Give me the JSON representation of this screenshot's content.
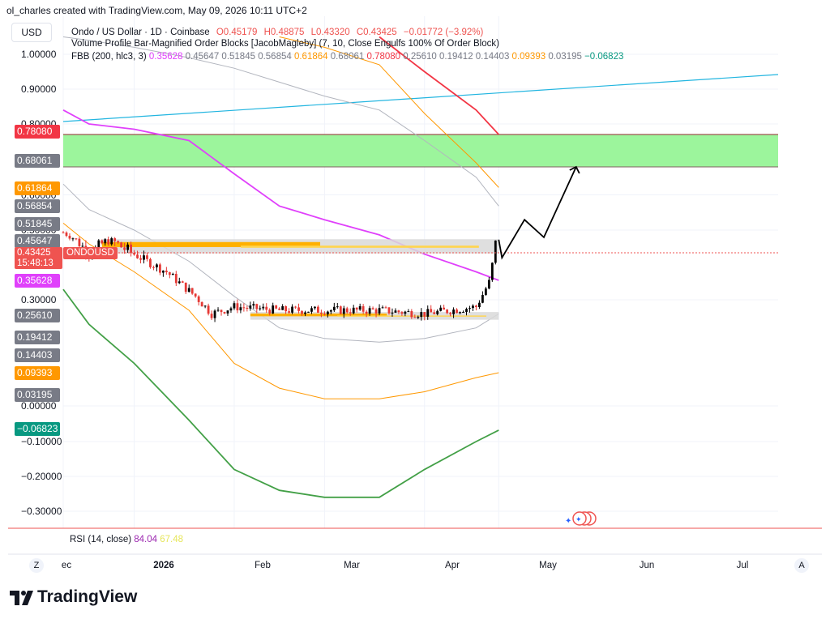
{
  "header": {
    "brand_line": "ol_charles created with TradingView.com, May 09, 2026 10:11 UTC+2",
    "currency": "USD"
  },
  "legend": {
    "symbol_line": "Ondo / US Dollar · 1D · Coinbase",
    "open": "O0.45179",
    "high": "H0.48875",
    "low": "L0.43320",
    "close": "C0.43425",
    "change": "−0.01772 (−3.92%)",
    "volume_profile_line": "Volume Profile Bar-Magnified Order Blocks [JacobMagleby] (7, 10, Close Engulfs 100% Of Order Block)",
    "fbb_name": "FBB (200, hlc3, 3)",
    "fbb_values": [
      {
        "text": "0.35628",
        "color": "#e040fb"
      },
      {
        "text": "0.45647",
        "color": "#787b86"
      },
      {
        "text": "0.51845",
        "color": "#787b86"
      },
      {
        "text": "0.56854",
        "color": "#787b86"
      },
      {
        "text": "0.61864",
        "color": "#ff9800"
      },
      {
        "text": "0.68061",
        "color": "#787b86"
      },
      {
        "text": "0.78080",
        "color": "#f23645"
      },
      {
        "text": "0.25610",
        "color": "#787b86"
      },
      {
        "text": "0.19412",
        "color": "#787b86"
      },
      {
        "text": "0.14403",
        "color": "#787b86"
      },
      {
        "text": "0.09393",
        "color": "#ff9800"
      },
      {
        "text": "0.03195",
        "color": "#787b86"
      },
      {
        "text": "−0.06823",
        "color": "#089981"
      }
    ]
  },
  "y_axis_labels": [
    "1.00000",
    "0.90000",
    "0.80000",
    "0.70000",
    "0.60000",
    "0.50000",
    "0.30000",
    "0.00000",
    "−0.10000",
    "−0.20000",
    "−0.30000"
  ],
  "y_badges": [
    {
      "text": "0.78080",
      "color": "#f23645"
    },
    {
      "text": "0.68061",
      "color": "#787b86"
    },
    {
      "text": "0.61864",
      "color": "#ff9800"
    },
    {
      "text": "0.56854",
      "color": "#787b86"
    },
    {
      "text": "0.51845",
      "color": "#787b86"
    },
    {
      "text": "0.45647",
      "color": "#787b86"
    },
    {
      "text": "0.35628",
      "color": "#e040fb"
    },
    {
      "text": "0.25610",
      "color": "#787b86"
    },
    {
      "text": "0.19412",
      "color": "#787b86"
    },
    {
      "text": "0.14403",
      "color": "#787b86"
    },
    {
      "text": "0.09393",
      "color": "#ff9800"
    },
    {
      "text": "0.03195",
      "color": "#787b86"
    },
    {
      "text": "−0.06823",
      "color": "#089981"
    }
  ],
  "price_badge": {
    "symbol": "ONDOUSD",
    "price": "0.43425",
    "countdown": "15:48:13"
  },
  "rsi": {
    "name": "RSI (14, close)",
    "value": "84.04",
    "ma": "67.48",
    "value_color": "#9c27b0",
    "ma_color": "#e6e65a"
  },
  "x_axis_labels": [
    "ec",
    "2026",
    "Feb",
    "Mar",
    "Apr",
    "May",
    "Jun",
    "Jul"
  ],
  "corner_buttons": {
    "left": "Z",
    "right": "A"
  },
  "logo": {
    "text": "TradingView"
  },
  "colors": {
    "up": "#000000",
    "down": "#e53935",
    "basis": "#e040fb",
    "zone": "#9cf59c",
    "trend": "#22b5e0",
    "fib_gray": "#b2b5be",
    "fib_orange": "#ff9800",
    "fib_red": "#f23645",
    "fib_green": "#43a047",
    "order_block": "#ffb000",
    "projection": "#000000"
  },
  "chart_data": {
    "type": "line",
    "symbol": "ONDOUSD",
    "ylim": [
      -0.3,
      1.0
    ],
    "x": [
      "2025-12-24",
      "2026-01-01",
      "2026-01-15",
      "2026-02-01",
      "2026-02-15",
      "2026-03-01",
      "2026-03-15",
      "2026-04-01",
      "2026-04-15",
      "2026-05-01",
      "2026-05-08"
    ],
    "fbb_bands": [
      {
        "level": "upper_3",
        "color": "#f23645",
        "values": [
          null,
          null,
          null,
          null,
          null,
          null,
          null,
          1.05,
          0.95,
          0.84,
          0.78
        ]
      },
      {
        "level": "upper_2",
        "color": "#ff9800",
        "values": [
          null,
          null,
          null,
          null,
          null,
          1.05,
          1.02,
          0.97,
          0.83,
          0.69,
          0.62
        ]
      },
      {
        "level": "upper_1",
        "color": "#b2b5be",
        "values": [
          1.05,
          1.04,
          1.02,
          0.99,
          0.96,
          0.92,
          0.88,
          0.84,
          0.76,
          0.65,
          0.57
        ]
      },
      {
        "level": "basis",
        "color": "#e040fb",
        "values": [
          0.84,
          0.8,
          0.79,
          0.76,
          0.66,
          0.57,
          0.53,
          0.48,
          0.43,
          0.38,
          0.356
        ]
      },
      {
        "level": "lower_1",
        "color": "#b2b5be",
        "values": [
          0.63,
          0.56,
          0.5,
          0.41,
          0.31,
          0.22,
          0.19,
          0.18,
          0.19,
          0.22,
          0.26
        ]
      },
      {
        "level": "lower_2",
        "color": "#ff9800",
        "values": [
          0.52,
          0.45,
          0.38,
          0.27,
          0.12,
          0.05,
          0.02,
          0.02,
          0.04,
          0.08,
          0.094
        ]
      },
      {
        "level": "lower_3",
        "color": "#43a047",
        "values": [
          0.33,
          0.23,
          0.12,
          -0.04,
          -0.18,
          -0.24,
          -0.26,
          -0.26,
          -0.18,
          -0.1,
          -0.068
        ]
      }
    ],
    "price_path": [
      {
        "x": "2025-12-24",
        "y": 0.49
      },
      {
        "x": "2026-01-01",
        "y": 0.43
      },
      {
        "x": "2026-01-07",
        "y": 0.46
      },
      {
        "x": "2026-01-15",
        "y": 0.43
      },
      {
        "x": "2026-01-25",
        "y": 0.38
      },
      {
        "x": "2026-02-03",
        "y": 0.31
      },
      {
        "x": "2026-02-08",
        "y": 0.26
      },
      {
        "x": "2026-02-15",
        "y": 0.28
      },
      {
        "x": "2026-03-01",
        "y": 0.27
      },
      {
        "x": "2026-03-15",
        "y": 0.27
      },
      {
        "x": "2026-04-01",
        "y": 0.27
      },
      {
        "x": "2026-04-15",
        "y": 0.26
      },
      {
        "x": "2026-05-01",
        "y": 0.28
      },
      {
        "x": "2026-05-05",
        "y": 0.35
      },
      {
        "x": "2026-05-07",
        "y": 0.45
      },
      {
        "x": "2026-05-08",
        "y": 0.434
      }
    ],
    "projection": [
      {
        "x": "2026-05-09",
        "y": 0.42
      },
      {
        "x": "2026-05-16",
        "y": 0.53
      },
      {
        "x": "2026-05-22",
        "y": 0.47
      },
      {
        "x": "2026-06-01",
        "y": 0.68
      }
    ],
    "zones": [
      {
        "from": 0.68061,
        "to": 0.7808,
        "color": "#9cf59c"
      }
    ],
    "order_blocks": [
      {
        "from_date": "2026-01-05",
        "to_date": "2026-05-08",
        "low": 0.432,
        "high": 0.462
      },
      {
        "from_date": "2026-02-20",
        "to_date": "2026-05-08",
        "low": 0.243,
        "high": 0.265
      }
    ],
    "trendline": [
      {
        "x": "2025-12-24",
        "y": 0.805
      },
      {
        "x": "2026-07-15",
        "y": 0.94
      }
    ],
    "ylabel": "",
    "xlabel": ""
  }
}
